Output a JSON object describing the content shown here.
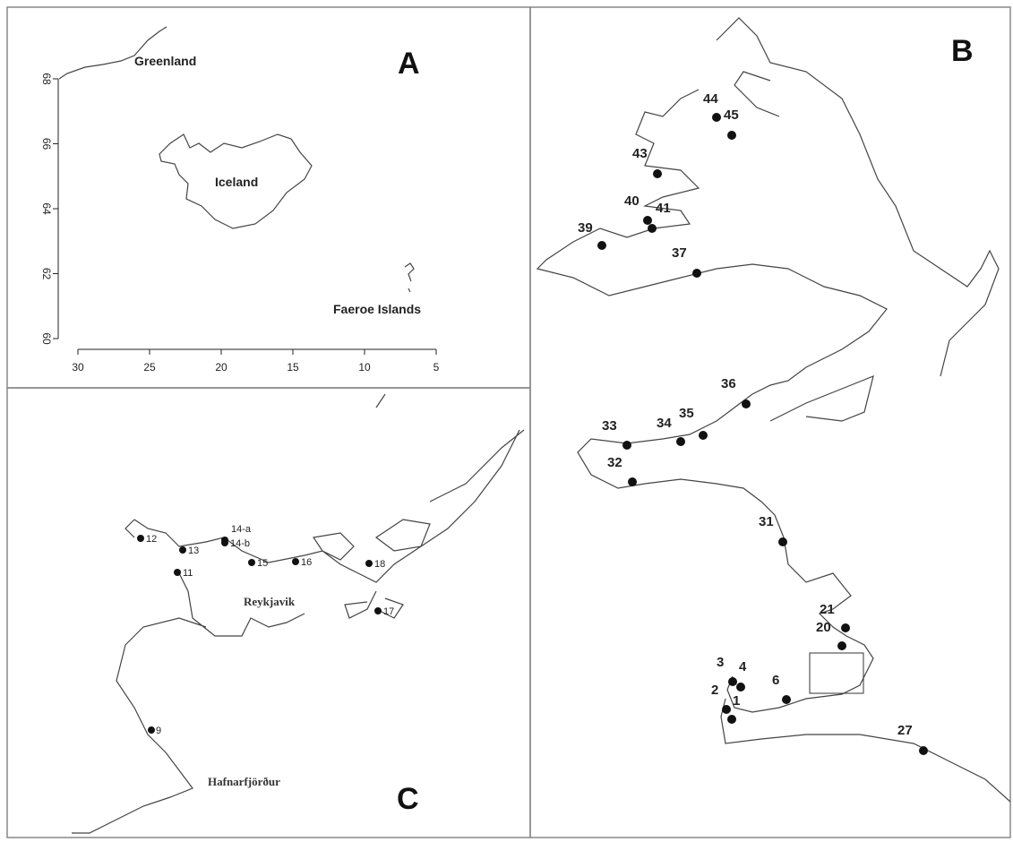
{
  "panel_a": {
    "label": "A",
    "places": [
      "Greenland",
      "Iceland",
      "Faeroe Islands"
    ],
    "xticks": [
      30,
      25,
      20,
      15,
      10,
      5
    ],
    "yticks": [
      60,
      62,
      64,
      66,
      68
    ]
  },
  "panel_b": {
    "label": "B",
    "stations": [
      "44",
      "45",
      "43",
      "40",
      "41",
      "39",
      "37",
      "36",
      "33",
      "34",
      "35",
      "32",
      "31",
      "21",
      "20",
      "3",
      "4",
      "2",
      "1",
      "6",
      "27"
    ]
  },
  "panel_c": {
    "label": "C",
    "places": [
      "Reykjavik",
      "Hafnarfjörður"
    ],
    "stations": [
      "12",
      "13",
      "14-a",
      "14-b",
      "15",
      "16",
      "18",
      "11",
      "17",
      "9"
    ]
  }
}
